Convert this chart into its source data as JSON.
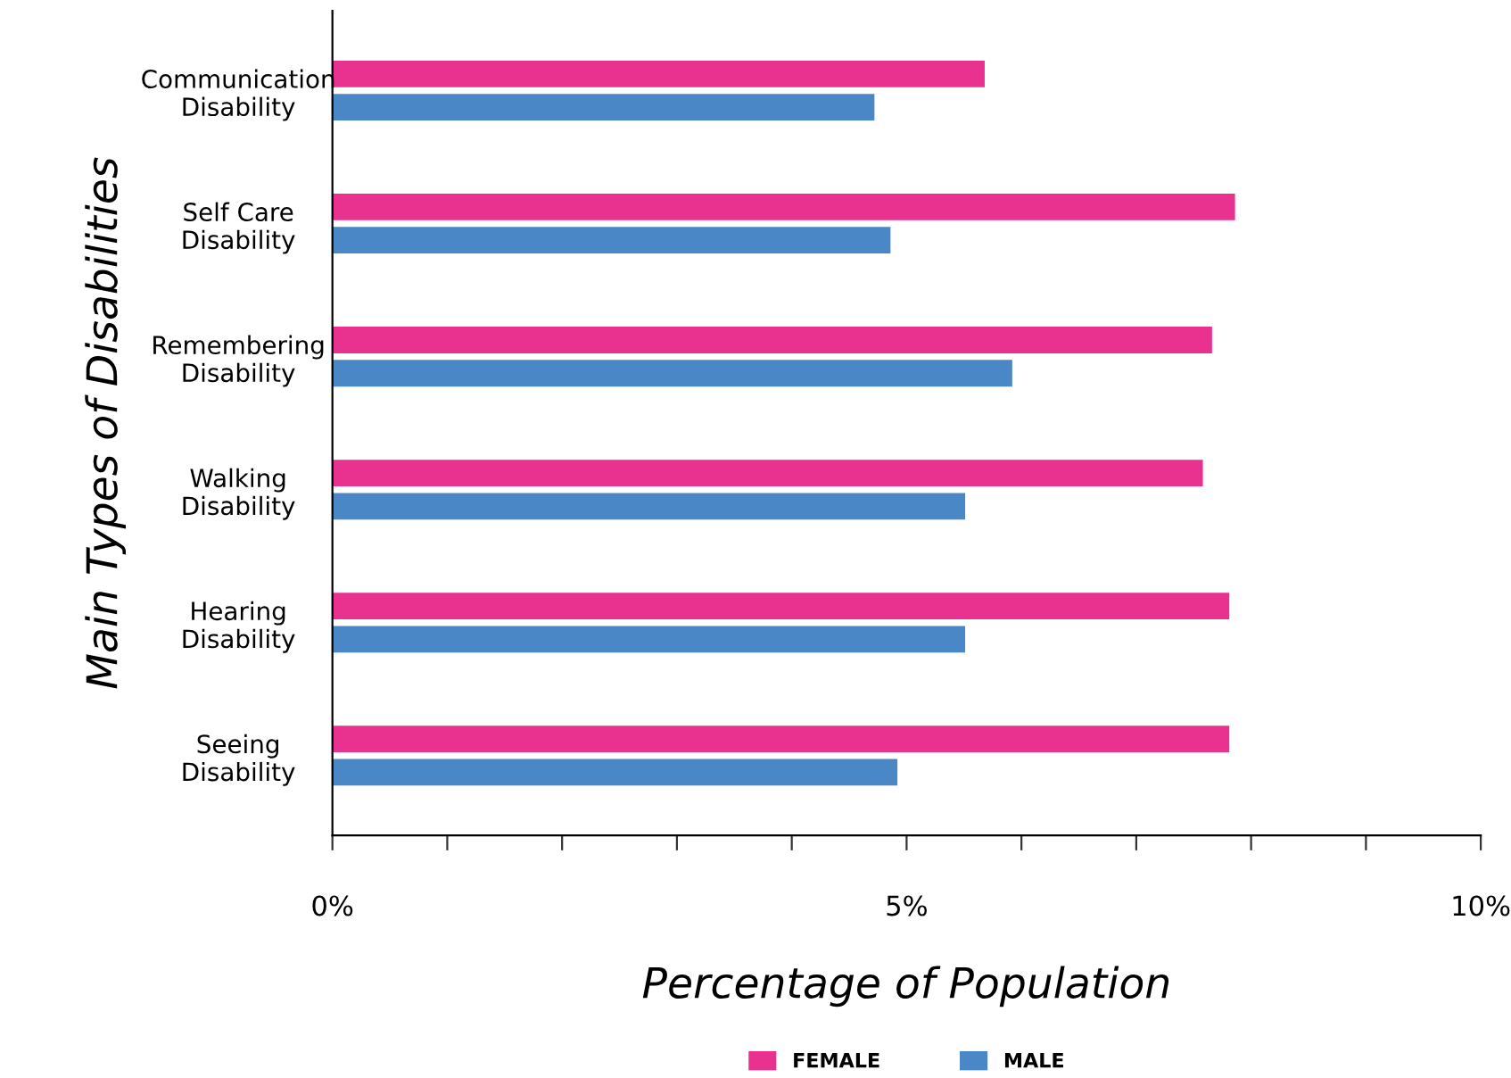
{
  "chart_data": {
    "type": "bar",
    "orientation": "horizontal",
    "xlabel": "Percentage of Population",
    "ylabel": "Main Types of Disabilities",
    "categories": [
      "Communication\nDisability",
      "Self Care\nDisability",
      "Remembering\nDisability",
      "Walking\nDisability",
      "Hearing\nDisability",
      "Seeing\nDisability"
    ],
    "series": [
      {
        "name": "FEMALE",
        "color": "#e9318f",
        "values": [
          5.68,
          7.86,
          7.66,
          7.58,
          7.81,
          7.81
        ]
      },
      {
        "name": "MALE",
        "color": "#4a87c6",
        "values": [
          4.72,
          4.86,
          5.92,
          5.51,
          5.51,
          4.92
        ]
      }
    ],
    "xlim": [
      0,
      10
    ],
    "xticks": [
      {
        "value": 0,
        "label": "0%"
      },
      {
        "value": 1,
        "label": null
      },
      {
        "value": 2,
        "label": null
      },
      {
        "value": 3,
        "label": null
      },
      {
        "value": 4,
        "label": null
      },
      {
        "value": 5,
        "label": "5%"
      },
      {
        "value": 6,
        "label": null
      },
      {
        "value": 7,
        "label": null
      },
      {
        "value": 8,
        "label": null
      },
      {
        "value": 9,
        "label": null
      },
      {
        "value": 10,
        "label": "10%"
      }
    ],
    "grid": false,
    "legend": "bottom"
  }
}
